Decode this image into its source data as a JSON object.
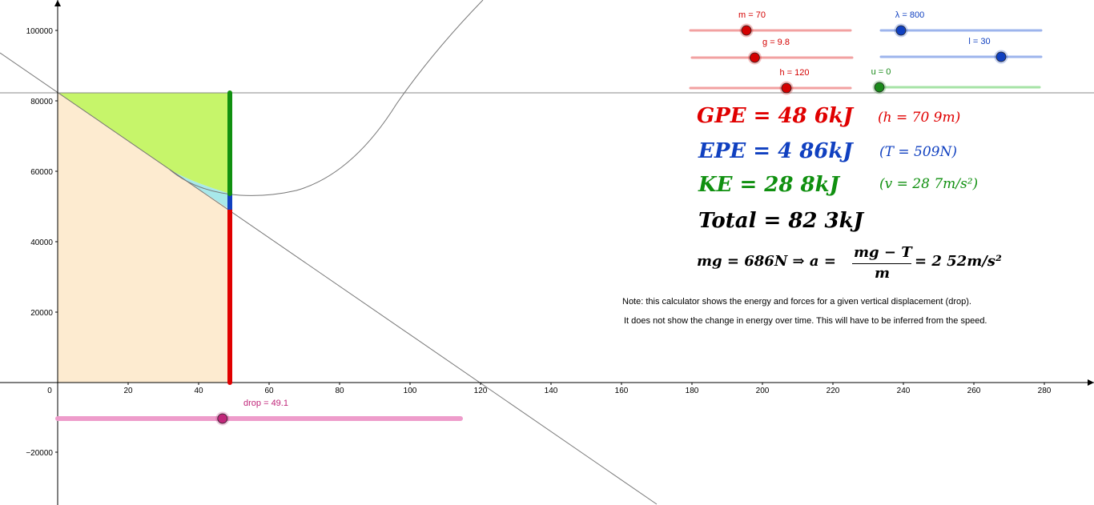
{
  "axes": {
    "x_ticks": [
      "0",
      "20",
      "40",
      "60",
      "80",
      "100",
      "120",
      "140",
      "160",
      "180",
      "200",
      "220",
      "240",
      "260",
      "280"
    ],
    "y_ticks": [
      "100000",
      "80000",
      "60000",
      "40000",
      "20000",
      "−20000"
    ]
  },
  "sliders": {
    "m": {
      "label": "m = 70",
      "value": 70,
      "color": "#d40000",
      "track": "#f2a1a1"
    },
    "g": {
      "label": "g = 9.8",
      "value": 9.8,
      "color": "#d40000",
      "track": "#f2a1a1"
    },
    "h": {
      "label": "h = 120",
      "value": 120,
      "color": "#d40000",
      "track": "#f2a1a1"
    },
    "lambda": {
      "label": "λ = 800",
      "value": 800,
      "color": "#1040c0",
      "track": "#9db4ec"
    },
    "l": {
      "label": "l = 30",
      "value": 30,
      "color": "#1040c0",
      "track": "#9db4ec"
    },
    "u": {
      "label": "u = 0",
      "value": 0,
      "color": "#1a8a1a",
      "track": "#a6e3a6"
    },
    "drop": {
      "label": "drop = 49.1",
      "value": 49.1,
      "color": "#c0267a",
      "track": "#ee9ccb"
    }
  },
  "equations": {
    "gpe": "GPE = 48 6kJ",
    "gpe_note": "(h = 70 9m)",
    "epe": "EPE = 4 86kJ",
    "epe_note": "(T = 509N)",
    "ke": "KE = 28 8kJ",
    "ke_note": "(v = 28 7m/s²)",
    "total": "Total = 82 3kJ",
    "force_left": "mg = 686N  ⇒  a =",
    "force_num": "mg − T",
    "force_den": "m",
    "force_right": "= 2 52m/s²"
  },
  "colors": {
    "gpe": "#e00000",
    "epe": "#1040c0",
    "ke": "#109010",
    "total": "#000000",
    "gpe_region": "#fdebd0",
    "ke_region": "#c6f56a",
    "epe_region": "#a8e8ea"
  },
  "notes": {
    "line1": "Note: this calculator shows the energy and forces for a given vertical displacement (drop).",
    "line2": "It does not show the change in energy over time.  This will have to be inferred from the speed."
  }
}
